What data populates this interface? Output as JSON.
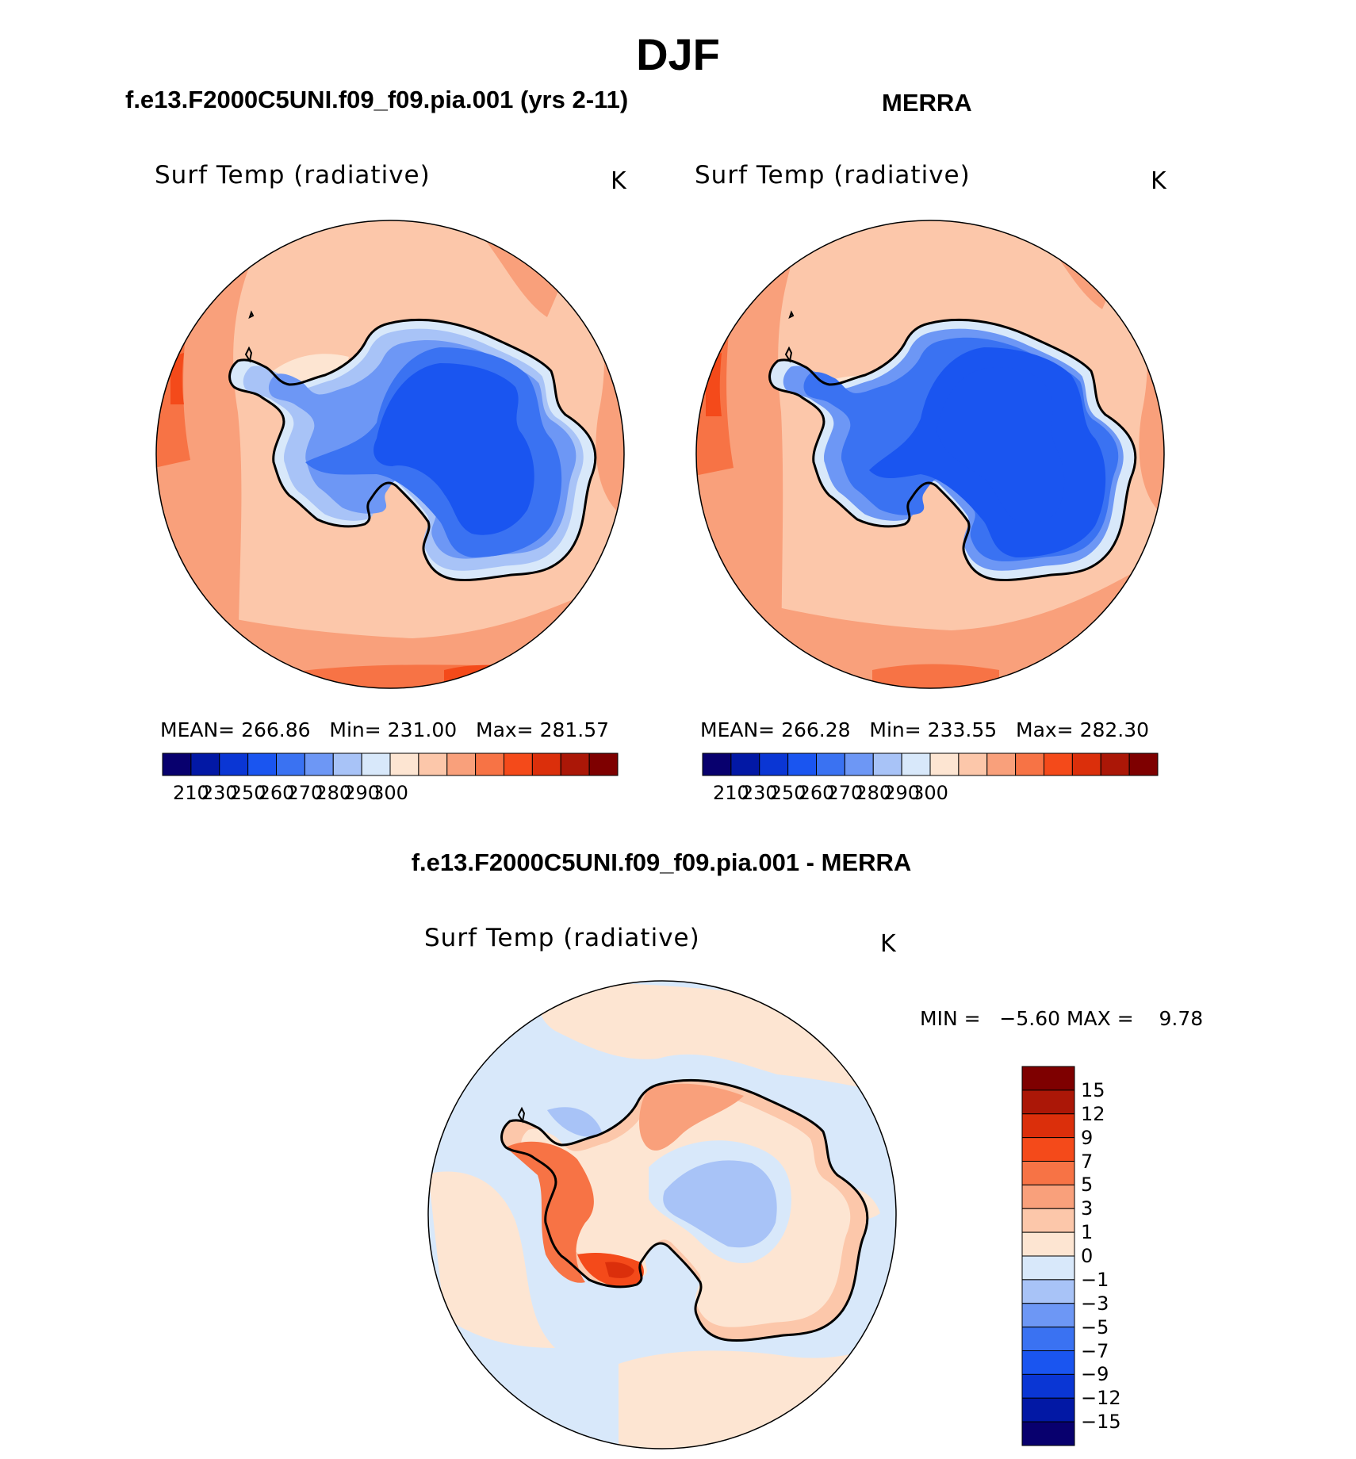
{
  "title": "DJF",
  "colors": {
    "abs_scale": [
      "#08006e",
      "#0218a5",
      "#0a36d4",
      "#1a55f0",
      "#3a72f2",
      "#6d97f5",
      "#a8c3f7",
      "#d8e8fa",
      "#fde5d2",
      "#fcc7aa",
      "#f9a07b",
      "#f77345",
      "#f44a1a",
      "#db2f0b",
      "#ab1707",
      "#7e0000"
    ],
    "diff_scale": [
      "#08006e",
      "#0218a5",
      "#0a36d4",
      "#1a55f0",
      "#3a72f2",
      "#6d97f5",
      "#a8c3f7",
      "#d8e8fa",
      "#fde5d2",
      "#fcc7aa",
      "#f9a07b",
      "#f77345",
      "#f44a1a",
      "#db2f0b",
      "#ab1707",
      "#7e0000"
    ]
  },
  "panels": [
    {
      "header": "f.e13.F2000C5UNI.f09_f09.pia.001 (yrs 2-11)",
      "var_title": "Surf Temp (radiative)",
      "units": "K",
      "stats": {
        "mean_label": "MEAN=",
        "mean": "266.86",
        "min_label": "Min=",
        "min": "231.00",
        "max_label": "Max=",
        "max": "281.57"
      },
      "colorbar_ticks": [
        "210",
        "230",
        "250",
        "260",
        "270",
        "280",
        "290",
        "300"
      ]
    },
    {
      "header": "MERRA",
      "var_title": "Surf Temp (radiative)",
      "units": "K",
      "stats": {
        "mean_label": "MEAN=",
        "mean": "266.28",
        "min_label": "Min=",
        "min": "233.55",
        "max_label": "Max=",
        "max": "282.30"
      },
      "colorbar_ticks": [
        "210",
        "230",
        "250",
        "260",
        "270",
        "280",
        "290",
        "300"
      ]
    }
  ],
  "diff_panel": {
    "header": "f.e13.F2000C5UNI.f09_f09.pia.001 - MERRA",
    "var_title": "Surf Temp (radiative)",
    "units": "K",
    "min_text": "MIN =",
    "min": "−5.60",
    "max_text": "MAX =",
    "max": "9.78",
    "colorbar_ticks": [
      "15",
      "12",
      "9",
      "7",
      "5",
      "3",
      "1",
      "0",
      "−1",
      "−3",
      "−5",
      "−7",
      "−9",
      "−12",
      "−15"
    ]
  }
}
